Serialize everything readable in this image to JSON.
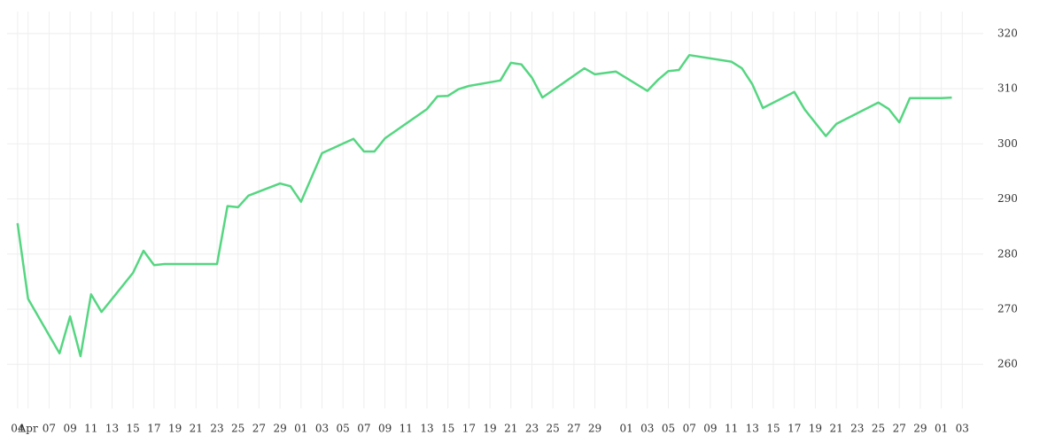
{
  "chart_data": {
    "type": "line",
    "x": [
      "04-04",
      "04-05",
      "04-08",
      "04-09",
      "04-10",
      "04-11",
      "04-12",
      "04-15",
      "04-16",
      "04-17",
      "04-18",
      "04-19",
      "04-22",
      "04-23",
      "04-24",
      "04-25",
      "04-26",
      "04-29",
      "04-30",
      "05-01",
      "05-03",
      "05-06",
      "05-07",
      "05-08",
      "05-09",
      "05-13",
      "05-14",
      "05-15",
      "05-16",
      "05-17",
      "05-20",
      "05-21",
      "05-22",
      "05-23",
      "05-24",
      "05-28",
      "05-29",
      "05-31",
      "06-03",
      "06-04",
      "06-05",
      "06-06",
      "06-07",
      "06-11",
      "06-12",
      "06-13",
      "06-14",
      "06-17",
      "06-18",
      "06-20",
      "06-21",
      "06-25",
      "06-26",
      "06-27",
      "06-28",
      "07-01",
      "07-02"
    ],
    "series": [
      {
        "color": "#55d681",
        "values": [
          285.6,
          271.9,
          262.0,
          268.7,
          261.5,
          272.7,
          269.5,
          276.6,
          280.6,
          278.0,
          278.2,
          278.2,
          278.2,
          278.2,
          288.7,
          288.5,
          290.6,
          292.8,
          292.3,
          289.5,
          298.3,
          300.9,
          298.6,
          298.6,
          301.0,
          306.3,
          308.6,
          308.7,
          309.9,
          310.5,
          311.5,
          314.7,
          314.4,
          312.0,
          308.4,
          313.7,
          312.6,
          313.1,
          309.6,
          311.6,
          313.2,
          313.4,
          316.1,
          314.9,
          313.7,
          310.8,
          306.5,
          309.4,
          306.2,
          301.4,
          303.6,
          307.5,
          306.3,
          303.9,
          308.3,
          308.3,
          308.4
        ]
      }
    ],
    "xlim": [
      "04-03",
      "07-05"
    ],
    "xticks": [
      {
        "value": "04-04",
        "label": "04"
      },
      {
        "value": "04-05",
        "label": "Apr"
      },
      {
        "value": "04-07",
        "label": "07"
      },
      {
        "value": "04-09",
        "label": "09"
      },
      {
        "value": "04-11",
        "label": "11"
      },
      {
        "value": "04-13",
        "label": "13"
      },
      {
        "value": "04-15",
        "label": "15"
      },
      {
        "value": "04-17",
        "label": "17"
      },
      {
        "value": "04-19",
        "label": "19"
      },
      {
        "value": "04-21",
        "label": "21"
      },
      {
        "value": "04-23",
        "label": "23"
      },
      {
        "value": "04-25",
        "label": "25"
      },
      {
        "value": "04-27",
        "label": "27"
      },
      {
        "value": "04-29",
        "label": "29"
      },
      {
        "value": "05-01",
        "label": "01"
      },
      {
        "value": "05-03",
        "label": "03"
      },
      {
        "value": "05-05",
        "label": "05"
      },
      {
        "value": "05-07",
        "label": "07"
      },
      {
        "value": "05-09",
        "label": "09"
      },
      {
        "value": "05-11",
        "label": "11"
      },
      {
        "value": "05-13",
        "label": "13"
      },
      {
        "value": "05-15",
        "label": "15"
      },
      {
        "value": "05-17",
        "label": "17"
      },
      {
        "value": "05-19",
        "label": "19"
      },
      {
        "value": "05-21",
        "label": "21"
      },
      {
        "value": "05-23",
        "label": "23"
      },
      {
        "value": "05-25",
        "label": "25"
      },
      {
        "value": "05-27",
        "label": "27"
      },
      {
        "value": "05-29",
        "label": "29"
      },
      {
        "value": "06-01",
        "label": "01"
      },
      {
        "value": "06-03",
        "label": "03"
      },
      {
        "value": "06-05",
        "label": "05"
      },
      {
        "value": "06-07",
        "label": "07"
      },
      {
        "value": "06-09",
        "label": "09"
      },
      {
        "value": "06-11",
        "label": "11"
      },
      {
        "value": "06-13",
        "label": "13"
      },
      {
        "value": "06-15",
        "label": "15"
      },
      {
        "value": "06-17",
        "label": "17"
      },
      {
        "value": "06-19",
        "label": "19"
      },
      {
        "value": "06-21",
        "label": "21"
      },
      {
        "value": "06-23",
        "label": "23"
      },
      {
        "value": "06-25",
        "label": "25"
      },
      {
        "value": "06-27",
        "label": "27"
      },
      {
        "value": "06-29",
        "label": "29"
      },
      {
        "value": "07-01",
        "label": "01"
      },
      {
        "value": "07-03",
        "label": "03"
      }
    ],
    "ylim": [
      252,
      324
    ],
    "yticks": [
      260,
      270,
      280,
      290,
      300,
      310,
      320
    ],
    "grid": true
  }
}
